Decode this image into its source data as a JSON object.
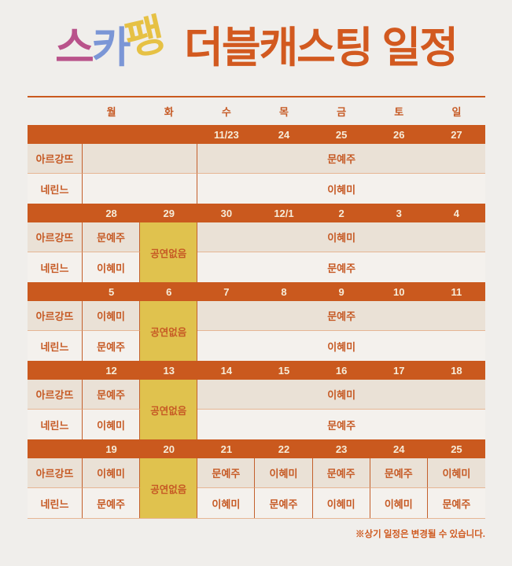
{
  "title": {
    "segments": [
      {
        "text": "스",
        "color": "#b9538b"
      },
      {
        "text": "카",
        "color": "#7b96d6"
      },
      {
        "text": "팽",
        "color": "#e6c144",
        "rotated": true
      },
      {
        "text": "더블캐스팅 일정",
        "color": "#d2591f",
        "spaced": true
      }
    ]
  },
  "colors": {
    "page_bg": "#f0eeeb",
    "bar_orange": "#ca591e",
    "cell_text_orange": "#c65a25",
    "row1_beige": "#eae1d6",
    "row2_light": "#f4f1ed",
    "no_show_yellow": "#e0c24e",
    "date_text": "#f6ecd9",
    "divider_salmon": "#e6b694"
  },
  "weekdays": [
    "월",
    "화",
    "수",
    "목",
    "금",
    "토",
    "일"
  ],
  "weeks": [
    {
      "dates": [
        "",
        "",
        "11/23",
        "24",
        "25",
        "26",
        "27"
      ],
      "rows": [
        {
          "label": "아르강뜨",
          "cells": [
            {
              "col": 0,
              "span": 2,
              "text": ""
            },
            {
              "col": 2,
              "span": 5,
              "text": "문예주"
            }
          ]
        },
        {
          "label": "네린느",
          "cells": [
            {
              "col": 0,
              "span": 2,
              "text": ""
            },
            {
              "col": 2,
              "span": 5,
              "text": "이혜미"
            }
          ]
        }
      ]
    },
    {
      "dates": [
        "28",
        "29",
        "30",
        "12/1",
        "2",
        "3",
        "4"
      ],
      "rows": [
        {
          "label": "아르강뜨",
          "cells": [
            {
              "col": 0,
              "span": 1,
              "text": "문예주"
            },
            {
              "col": 1,
              "span": 1,
              "text": "공연없음",
              "noshow": true
            },
            {
              "col": 2,
              "span": 5,
              "text": "이혜미"
            }
          ]
        },
        {
          "label": "네린느",
          "cells": [
            {
              "col": 0,
              "span": 1,
              "text": "이혜미"
            },
            {
              "col": 2,
              "span": 5,
              "text": "문예주"
            }
          ]
        }
      ]
    },
    {
      "dates": [
        "5",
        "6",
        "7",
        "8",
        "9",
        "10",
        "11"
      ],
      "rows": [
        {
          "label": "아르강뜨",
          "cells": [
            {
              "col": 0,
              "span": 1,
              "text": "이혜미"
            },
            {
              "col": 1,
              "span": 1,
              "text": "공연없음",
              "noshow": true
            },
            {
              "col": 2,
              "span": 5,
              "text": "문예주"
            }
          ]
        },
        {
          "label": "네린느",
          "cells": [
            {
              "col": 0,
              "span": 1,
              "text": "문예주"
            },
            {
              "col": 2,
              "span": 5,
              "text": "이혜미"
            }
          ]
        }
      ]
    },
    {
      "dates": [
        "12",
        "13",
        "14",
        "15",
        "16",
        "17",
        "18"
      ],
      "rows": [
        {
          "label": "아르강뜨",
          "cells": [
            {
              "col": 0,
              "span": 1,
              "text": "문예주"
            },
            {
              "col": 1,
              "span": 1,
              "text": "공연없음",
              "noshow": true
            },
            {
              "col": 2,
              "span": 5,
              "text": "이혜미"
            }
          ]
        },
        {
          "label": "네린느",
          "cells": [
            {
              "col": 0,
              "span": 1,
              "text": "이혜미"
            },
            {
              "col": 2,
              "span": 5,
              "text": "문예주"
            }
          ]
        }
      ]
    },
    {
      "dates": [
        "19",
        "20",
        "21",
        "22",
        "23",
        "24",
        "25"
      ],
      "rows": [
        {
          "label": "아르강뜨",
          "cells": [
            {
              "col": 0,
              "span": 1,
              "text": "이혜미"
            },
            {
              "col": 1,
              "span": 1,
              "text": "공연없음",
              "noshow": true
            },
            {
              "col": 2,
              "span": 1,
              "text": "문예주"
            },
            {
              "col": 3,
              "span": 1,
              "text": "이혜미"
            },
            {
              "col": 4,
              "span": 1,
              "text": "문예주"
            },
            {
              "col": 5,
              "span": 1,
              "text": "문예주"
            },
            {
              "col": 6,
              "span": 1,
              "text": "이혜미"
            }
          ]
        },
        {
          "label": "네린느",
          "cells": [
            {
              "col": 0,
              "span": 1,
              "text": "문예주"
            },
            {
              "col": 2,
              "span": 1,
              "text": "이혜미"
            },
            {
              "col": 3,
              "span": 1,
              "text": "문예주"
            },
            {
              "col": 4,
              "span": 1,
              "text": "이혜미"
            },
            {
              "col": 5,
              "span": 1,
              "text": "이혜미"
            },
            {
              "col": 6,
              "span": 1,
              "text": "문예주"
            }
          ]
        }
      ]
    }
  ],
  "footer": {
    "note": "※상기 일정은 변경될 수 있습니다."
  }
}
